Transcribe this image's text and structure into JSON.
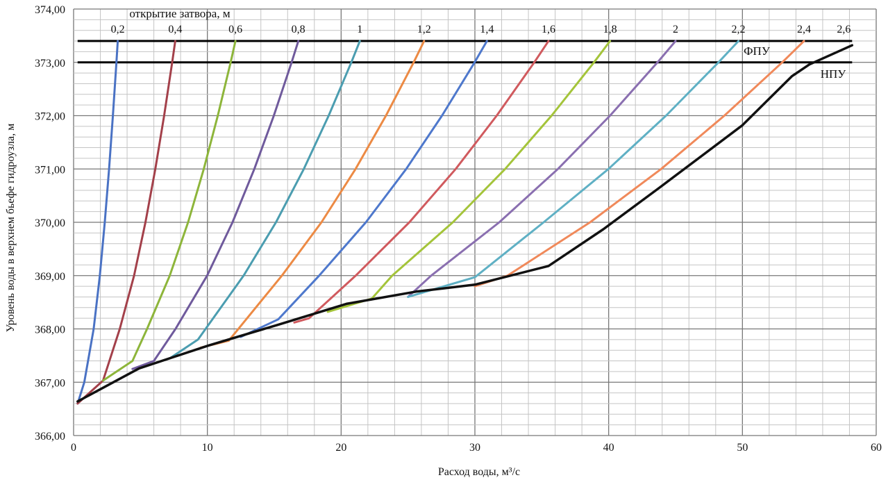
{
  "chart_data": {
    "type": "line",
    "xlabel": "Расход воды, м³/с",
    "ylabel": "Уровень воды в верхнем бьефе гидроузла, м",
    "legend_title": "открытие затвора, м",
    "xlim": [
      0,
      60
    ],
    "ylim": [
      366,
      374
    ],
    "x_ticks": [
      "0",
      "10",
      "20",
      "30",
      "40",
      "50",
      "60"
    ],
    "x_tick_values": [
      0,
      10,
      20,
      30,
      40,
      50,
      60
    ],
    "y_ticks": [
      "366,00",
      "367,00",
      "368,00",
      "369,00",
      "370,00",
      "371,00",
      "372,00",
      "373,00",
      "374,00"
    ],
    "y_tick_values": [
      366,
      367,
      368,
      369,
      370,
      371,
      372,
      373,
      374
    ],
    "grid": {
      "x_minor_step": 2,
      "y_minor_step": 0.2
    },
    "reference_lines": [
      {
        "label": "ФПУ",
        "y": 373.4,
        "x_range": [
          0.3,
          58.2
        ],
        "color": "#000000"
      },
      {
        "label": "НПУ",
        "y": 373.0,
        "x_range": [
          0.3,
          58.2
        ],
        "color": "#000000"
      }
    ],
    "series": [
      {
        "name": "0,2",
        "color": "#4a72c4",
        "points": [
          [
            0.3,
            366.6
          ],
          [
            0.8,
            367
          ],
          [
            1.5,
            368
          ],
          [
            1.96,
            369
          ],
          [
            2.33,
            370
          ],
          [
            2.65,
            371
          ],
          [
            2.94,
            372
          ],
          [
            3.2,
            373
          ],
          [
            3.3,
            373.4
          ]
        ]
      },
      {
        "name": "0,4",
        "color": "#a3404a",
        "points": [
          [
            0.3,
            366.6
          ],
          [
            2.2,
            367.03
          ],
          [
            3.45,
            368
          ],
          [
            4.52,
            369
          ],
          [
            5.37,
            370
          ],
          [
            6.11,
            371
          ],
          [
            6.77,
            372
          ],
          [
            7.37,
            373
          ],
          [
            7.6,
            373.4
          ]
        ]
      },
      {
        "name": "0,6",
        "color": "#8db53a",
        "points": [
          [
            2.2,
            367.03
          ],
          [
            4.4,
            367.4
          ],
          [
            5.49,
            368
          ],
          [
            7.19,
            369
          ],
          [
            8.56,
            370
          ],
          [
            9.73,
            371
          ],
          [
            10.78,
            372
          ],
          [
            11.74,
            373
          ],
          [
            12.1,
            373.4
          ]
        ]
      },
      {
        "name": "0,8",
        "color": "#6f5a9c",
        "points": [
          [
            4.4,
            367.25
          ],
          [
            6.0,
            367.4
          ],
          [
            7.62,
            368
          ],
          [
            9.98,
            369
          ],
          [
            11.88,
            370
          ],
          [
            13.51,
            371
          ],
          [
            14.97,
            372
          ],
          [
            16.3,
            373
          ],
          [
            16.8,
            373.4
          ]
        ]
      },
      {
        "name": "1",
        "color": "#4b9db0",
        "points": [
          [
            7.2,
            367.45
          ],
          [
            9.3,
            367.8
          ],
          [
            12.71,
            369
          ],
          [
            15.13,
            370
          ],
          [
            17.21,
            371
          ],
          [
            19.07,
            372
          ],
          [
            20.76,
            373
          ],
          [
            21.4,
            373.4
          ]
        ]
      },
      {
        "name": "1,2",
        "color": "#ec8a44",
        "points": [
          [
            9.5,
            367.65
          ],
          [
            11.6,
            367.78
          ],
          [
            15.57,
            369
          ],
          [
            18.53,
            370
          ],
          [
            21.08,
            371
          ],
          [
            23.35,
            372
          ],
          [
            25.42,
            373
          ],
          [
            26.2,
            373.4
          ]
        ]
      },
      {
        "name": "1,4",
        "color": "#4e78cc",
        "points": [
          [
            12.5,
            367.85
          ],
          [
            15.3,
            368.18
          ],
          [
            18.36,
            369
          ],
          [
            21.85,
            370
          ],
          [
            24.86,
            371
          ],
          [
            27.54,
            372
          ],
          [
            29.98,
            373
          ],
          [
            30.9,
            373.4
          ]
        ]
      },
      {
        "name": "1,6",
        "color": "#d05a5e",
        "points": [
          [
            16.5,
            368.12
          ],
          [
            17.6,
            368.2
          ],
          [
            21.09,
            369
          ],
          [
            25.1,
            370
          ],
          [
            28.56,
            371
          ],
          [
            31.63,
            372
          ],
          [
            34.44,
            373
          ],
          [
            35.5,
            373.4
          ]
        ]
      },
      {
        "name": "1,8",
        "color": "#a4c43a",
        "points": [
          [
            19,
            368.32
          ],
          [
            22.3,
            368.57
          ],
          [
            23.82,
            369
          ],
          [
            28.35,
            370
          ],
          [
            32.26,
            371
          ],
          [
            35.73,
            372
          ],
          [
            38.9,
            373
          ],
          [
            40.1,
            373.4
          ]
        ]
      },
      {
        "name": "2",
        "color": "#8a6fb0",
        "points": [
          [
            25,
            368.6
          ],
          [
            26.73,
            369
          ],
          [
            31.82,
            370
          ],
          [
            36.2,
            371
          ],
          [
            40.1,
            372
          ],
          [
            43.65,
            373
          ],
          [
            45,
            373.4
          ]
        ]
      },
      {
        "name": "2,2",
        "color": "#5fb0c4",
        "points": [
          [
            25,
            368.6
          ],
          [
            30,
            368.97
          ],
          [
            35.14,
            370
          ],
          [
            39.98,
            371
          ],
          [
            44.29,
            372
          ],
          [
            48.21,
            373
          ],
          [
            49.7,
            373.4
          ]
        ]
      },
      {
        "name": "2,4",
        "color": "#f0895a",
        "points": [
          [
            30,
            368.8
          ],
          [
            32.44,
            369
          ],
          [
            38.61,
            370
          ],
          [
            43.92,
            371
          ],
          [
            48.65,
            372
          ],
          [
            52.97,
            373
          ],
          [
            54.6,
            373.4
          ]
        ]
      },
      {
        "name": "2,6",
        "color": "#111111",
        "points": [
          [
            0.3,
            366.64
          ],
          [
            4.9,
            367.26
          ],
          [
            10.1,
            367.69
          ],
          [
            15.3,
            368.08
          ],
          [
            20.4,
            368.47
          ],
          [
            25.6,
            368.7
          ],
          [
            30,
            368.83
          ],
          [
            35.5,
            369.18
          ],
          [
            39.6,
            369.87
          ],
          [
            43.8,
            370.65
          ],
          [
            50,
            371.82
          ],
          [
            53.7,
            372.74
          ],
          [
            55,
            372.96
          ],
          [
            58.2,
            373.32
          ]
        ]
      }
    ]
  }
}
